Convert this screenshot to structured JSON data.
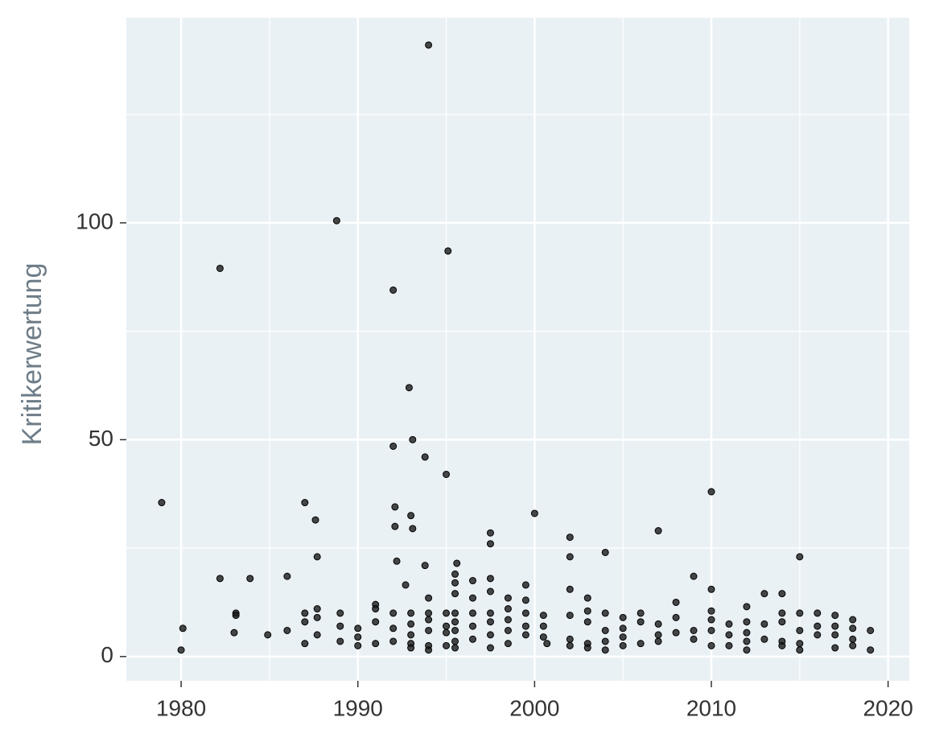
{
  "chart_data": {
    "type": "scatter",
    "y_label": "Kritikerwertung",
    "xlim": [
      1976.9,
      2021.2
    ],
    "ylim": [
      -5.6,
      147.3
    ],
    "xticks": [
      1980,
      1990,
      2000,
      2010,
      2020
    ],
    "yticks": [
      0,
      50,
      100
    ],
    "minor_xticks": [
      1985,
      1995,
      2005,
      2015
    ],
    "minor_yticks": [
      25,
      75,
      125
    ],
    "grid": true,
    "color": "#1a1a1a",
    "x": [
      1978.9,
      1980,
      1980.1,
      1982.2,
      1982.2,
      1983,
      1983.1,
      1983.1,
      1983.9,
      1984.9,
      1986,
      1986,
      1987,
      1987,
      1987,
      1987,
      1987.6,
      1987.7,
      1987.7,
      1987.7,
      1987.7,
      1988.8,
      1989,
      1989,
      1989,
      1990,
      1990,
      1990,
      1991,
      1991,
      1991,
      1991,
      1992,
      1992,
      1992.1,
      1992.1,
      1992.2,
      1992,
      1992,
      1992,
      1992.9,
      1992.7,
      1993,
      1993.1,
      1993.1,
      1993,
      1993,
      1993,
      1993,
      1993,
      1994,
      1993.8,
      1993.8,
      1994,
      1994,
      1994,
      1994,
      1994,
      1994,
      1995.1,
      1995,
      1995,
      1995,
      1995,
      1995,
      1995.5,
      1995.5,
      1995.6,
      1995.5,
      1995.5,
      1995.5,
      1995.5,
      1995.5,
      1995.5,
      1996.5,
      1996.5,
      1996.5,
      1996.5,
      1996.5,
      1997.5,
      1997.5,
      1997.5,
      1997.5,
      1997.5,
      1997.5,
      1997.5,
      1997.5,
      1998.5,
      1998.5,
      1998.5,
      1998.5,
      1998.5,
      1999.5,
      1999.5,
      1999.5,
      1999.5,
      1999.5,
      2000,
      2000.5,
      2000.5,
      2000.5,
      2000.7,
      2002,
      2002,
      2002,
      2002,
      2002,
      2002,
      2003,
      2003,
      2003,
      2003,
      2003,
      2004,
      2004,
      2004,
      2004,
      2004,
      2005,
      2005,
      2005,
      2005,
      2006,
      2006,
      2006,
      2007,
      2007,
      2007,
      2007,
      2008,
      2008,
      2008,
      2009,
      2009,
      2009,
      2010,
      2010,
      2010,
      2010,
      2010,
      2010,
      2011,
      2011,
      2011,
      2012,
      2012,
      2012,
      2012,
      2012,
      2013,
      2013,
      2013,
      2014,
      2014,
      2014,
      2014,
      2014,
      2015,
      2015,
      2015,
      2015,
      2015,
      2016,
      2016,
      2016,
      2017,
      2017,
      2017,
      2017,
      2018,
      2018,
      2018,
      2018,
      2019,
      2019
    ],
    "values": [
      35.5,
      1.5,
      6.5,
      89.5,
      18,
      5.5,
      10,
      9.5,
      18,
      5,
      18.5,
      6,
      35.5,
      10,
      8,
      3,
      31.5,
      23,
      11,
      9,
      5,
      100.5,
      10,
      7,
      3.5,
      6.5,
      4.5,
      2.5,
      12,
      11,
      8,
      3,
      84.5,
      48.5,
      34.5,
      30,
      22,
      10,
      6.5,
      3.5,
      62,
      16.5,
      32.5,
      50,
      29.5,
      10,
      7.5,
      5,
      3,
      2,
      141,
      46,
      21,
      13.5,
      10,
      8.5,
      6,
      2.5,
      1.5,
      93.5,
      42,
      10,
      7,
      5.5,
      2.5,
      19,
      17,
      21.5,
      14.5,
      10,
      8,
      6,
      3.5,
      2,
      17.5,
      13.5,
      10,
      7,
      4,
      28.5,
      26,
      18,
      15,
      10,
      8,
      5,
      2,
      13.5,
      11,
      8.5,
      6,
      3,
      16.5,
      13,
      10,
      7,
      5,
      33,
      9.5,
      7,
      4.5,
      3,
      27.5,
      23,
      15.5,
      9.5,
      4,
      2.5,
      13.5,
      10.5,
      8,
      3,
      2,
      24,
      10,
      6,
      3.5,
      1.5,
      9,
      6.5,
      4.5,
      2.5,
      10,
      8,
      3,
      29,
      7.5,
      5,
      3.5,
      12.5,
      9,
      5.5,
      18.5,
      6,
      4,
      38,
      15.5,
      10.5,
      8.5,
      6,
      2.5,
      7.5,
      5,
      2.5,
      11.5,
      8,
      5.5,
      3.5,
      1.5,
      14.5,
      7.5,
      4,
      14.5,
      10,
      8,
      3.5,
      2.5,
      23,
      10,
      6,
      3,
      1.5,
      10,
      7,
      5,
      9.5,
      7,
      5,
      2,
      8.5,
      6.5,
      4,
      2.5,
      6,
      1.5
    ]
  }
}
